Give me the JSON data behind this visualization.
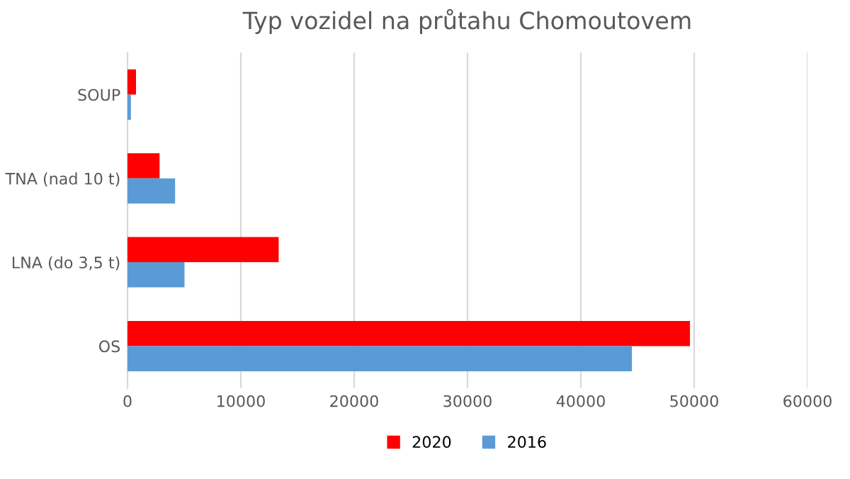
{
  "chart_data": {
    "type": "bar",
    "orientation": "horizontal",
    "title": "Typ vozidel na průtahu Chomoutovem",
    "categories": [
      "SOUP",
      "TNA (nad 10 t)",
      "LNA (do 3,5 t)",
      "OS"
    ],
    "series": [
      {
        "name": "2020",
        "color": "#ff0000",
        "values": [
          750,
          2830,
          13340,
          49630
        ]
      },
      {
        "name": "2016",
        "color": "#5b9bd5",
        "values": [
          300,
          4200,
          5030,
          44510
        ]
      }
    ],
    "xlim": [
      0,
      60000
    ],
    "xticks": [
      0,
      10000,
      20000,
      30000,
      40000,
      50000,
      60000
    ],
    "grid": "x",
    "legend": "bottom"
  }
}
